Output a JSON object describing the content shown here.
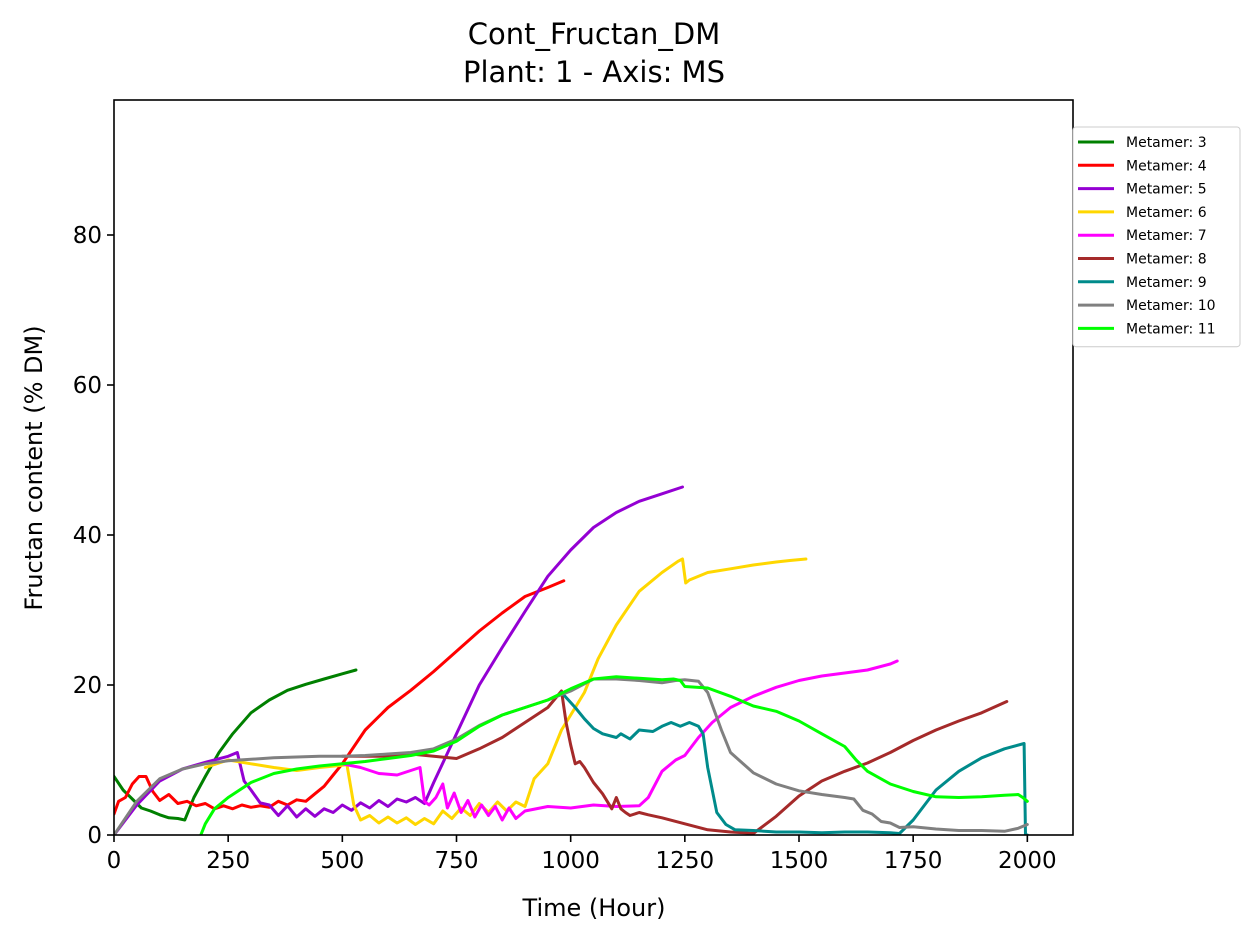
{
  "chart_data": {
    "type": "line",
    "title": "Cont_Fructan_DM",
    "subtitle": "Plant: 1 - Axis: MS",
    "xlabel": "Time (Hour)",
    "ylabel": "Fructan content (% DM)",
    "xlim": [
      0,
      2100
    ],
    "ylim": [
      0,
      98
    ],
    "xticks": [
      0,
      250,
      500,
      750,
      1000,
      1250,
      1500,
      1750,
      2000
    ],
    "yticks": [
      0,
      20,
      40,
      60,
      80
    ],
    "grid": false,
    "legend_position": "right-outside",
    "series": [
      {
        "name": "Metamer: 3",
        "color": "#008000",
        "x": [
          0,
          20,
          40,
          60,
          80,
          100,
          120,
          140,
          155,
          175,
          200,
          230,
          260,
          300,
          340,
          380,
          420,
          460,
          500,
          530
        ],
        "y": [
          7.8,
          6.0,
          4.8,
          3.6,
          3.2,
          2.7,
          2.3,
          2.2,
          2.0,
          5.0,
          7.8,
          11.0,
          13.5,
          16.3,
          18.0,
          19.3,
          20.1,
          20.8,
          21.5,
          22.0
        ]
      },
      {
        "name": "Metamer: 4",
        "color": "#ff0000",
        "x": [
          0,
          10,
          25,
          40,
          55,
          70,
          85,
          100,
          120,
          140,
          160,
          180,
          200,
          220,
          240,
          260,
          280,
          300,
          320,
          340,
          360,
          380,
          400,
          420,
          440,
          460,
          480,
          500,
          550,
          600,
          650,
          700,
          750,
          800,
          850,
          900,
          950,
          985
        ],
        "y": [
          2.8,
          4.5,
          5.0,
          6.8,
          7.8,
          7.8,
          5.8,
          4.6,
          5.4,
          4.2,
          4.5,
          3.9,
          4.2,
          3.5,
          3.9,
          3.5,
          4.0,
          3.7,
          3.9,
          3.7,
          4.5,
          4.0,
          4.7,
          4.5,
          5.5,
          6.5,
          8.0,
          9.5,
          14.0,
          17.0,
          19.3,
          21.8,
          24.5,
          27.2,
          29.6,
          31.8,
          33.0,
          33.9
        ]
      },
      {
        "name": "Metamer: 5",
        "color": "#9400d3",
        "x": [
          0,
          50,
          100,
          150,
          200,
          250,
          270,
          285,
          300,
          320,
          340,
          360,
          380,
          400,
          420,
          440,
          460,
          480,
          500,
          520,
          540,
          560,
          580,
          600,
          620,
          640,
          660,
          680,
          700,
          750,
          800,
          850,
          900,
          950,
          1000,
          1050,
          1100,
          1150,
          1200,
          1245
        ],
        "y": [
          0,
          4.0,
          7.2,
          8.8,
          9.7,
          10.5,
          11.0,
          7.2,
          6.0,
          4.3,
          4.0,
          2.6,
          3.9,
          2.4,
          3.5,
          2.5,
          3.5,
          3.0,
          4.0,
          3.3,
          4.3,
          3.6,
          4.6,
          3.8,
          4.8,
          4.4,
          5.0,
          4.2,
          7.0,
          13.5,
          20.0,
          25.0,
          29.8,
          34.5,
          38.0,
          41.0,
          43.0,
          44.5,
          45.5,
          46.4
        ]
      },
      {
        "name": "Metamer: 6",
        "color": "#ffd700",
        "x": [
          200,
          250,
          300,
          350,
          400,
          450,
          500,
          510,
          525,
          540,
          560,
          580,
          600,
          620,
          640,
          660,
          680,
          700,
          720,
          740,
          760,
          780,
          800,
          820,
          840,
          860,
          880,
          900,
          920,
          950,
          980,
          1000,
          1030,
          1060,
          1100,
          1150,
          1200,
          1235,
          1245,
          1252,
          1260,
          1300,
          1350,
          1400,
          1450,
          1480,
          1515
        ],
        "y": [
          9.0,
          10.0,
          9.5,
          9.0,
          8.6,
          9.0,
          9.3,
          9.4,
          4.0,
          2.0,
          2.6,
          1.6,
          2.4,
          1.6,
          2.3,
          1.4,
          2.2,
          1.5,
          3.2,
          2.2,
          3.6,
          2.6,
          4.2,
          3.0,
          4.4,
          3.2,
          4.4,
          3.8,
          7.5,
          9.5,
          14.0,
          16.0,
          19.0,
          23.5,
          28.0,
          32.5,
          35.0,
          36.5,
          36.8,
          33.6,
          34.0,
          35.0,
          35.5,
          36.0,
          36.4,
          36.6,
          36.8
        ]
      },
      {
        "name": "Metamer: 7",
        "color": "#ff00ff",
        "x": [
          500,
          540,
          580,
          620,
          650,
          670,
          680,
          690,
          705,
          720,
          730,
          745,
          760,
          775,
          790,
          805,
          820,
          835,
          850,
          865,
          880,
          900,
          950,
          1000,
          1050,
          1100,
          1150,
          1170,
          1200,
          1230,
          1250,
          1280,
          1310,
          1350,
          1400,
          1450,
          1500,
          1550,
          1600,
          1650,
          1700,
          1715
        ],
        "y": [
          9.5,
          9.0,
          8.2,
          8.0,
          8.6,
          9.0,
          4.5,
          4.0,
          5.0,
          6.8,
          3.6,
          5.6,
          3.0,
          4.6,
          2.4,
          4.0,
          2.6,
          3.8,
          2.0,
          3.6,
          2.2,
          3.2,
          3.8,
          3.6,
          4.0,
          3.8,
          3.9,
          5.0,
          8.5,
          10.0,
          10.6,
          13.0,
          15.0,
          17.0,
          18.5,
          19.7,
          20.6,
          21.2,
          21.6,
          22.0,
          22.8,
          23.2
        ]
      },
      {
        "name": "Metamer: 8",
        "color": "#a52a2a",
        "x": [
          500,
          600,
          650,
          700,
          750,
          800,
          850,
          900,
          950,
          980,
          990,
          1000,
          1010,
          1020,
          1030,
          1050,
          1070,
          1090,
          1100,
          1110,
          1120,
          1130,
          1150,
          1170,
          1200,
          1250,
          1300,
          1350,
          1380,
          1400,
          1450,
          1500,
          1550,
          1600,
          1650,
          1700,
          1750,
          1800,
          1850,
          1900,
          1955
        ],
        "y": [
          10.5,
          10.5,
          10.8,
          10.5,
          10.2,
          11.5,
          13.0,
          15.0,
          17.0,
          19.2,
          15.0,
          12.0,
          9.5,
          9.8,
          9.0,
          7.0,
          5.5,
          3.5,
          5.0,
          3.5,
          3.0,
          2.6,
          3.0,
          2.7,
          2.3,
          1.5,
          0.7,
          0.4,
          0.3,
          0.2,
          2.5,
          5.2,
          7.2,
          8.5,
          9.6,
          11.0,
          12.6,
          14.0,
          15.2,
          16.3,
          17.8
        ]
      },
      {
        "name": "Metamer: 9",
        "color": "#008b8b",
        "x": [
          980,
          995,
          1010,
          1030,
          1050,
          1070,
          1100,
          1110,
          1130,
          1150,
          1180,
          1200,
          1220,
          1240,
          1260,
          1280,
          1290,
          1300,
          1320,
          1340,
          1360,
          1400,
          1450,
          1500,
          1550,
          1600,
          1650,
          1700,
          1720,
          1750,
          1800,
          1850,
          1900,
          1950,
          1993,
          1996,
          2000
        ],
        "y": [
          19.0,
          18.0,
          17.0,
          15.5,
          14.2,
          13.5,
          13.0,
          13.5,
          12.8,
          14.0,
          13.8,
          14.5,
          15.0,
          14.5,
          15.0,
          14.5,
          13.5,
          9.0,
          3.0,
          1.4,
          0.7,
          0.6,
          0.4,
          0.4,
          0.3,
          0.4,
          0.4,
          0.3,
          0.2,
          2.0,
          6.0,
          8.5,
          10.3,
          11.5,
          12.2,
          0.0,
          0.0
        ]
      },
      {
        "name": "Metamer: 10",
        "color": "#808080",
        "x": [
          0,
          50,
          100,
          150,
          200,
          250,
          300,
          350,
          400,
          450,
          500,
          550,
          600,
          650,
          700,
          750,
          800,
          850,
          900,
          950,
          1000,
          1050,
          1100,
          1150,
          1200,
          1230,
          1250,
          1280,
          1300,
          1330,
          1350,
          1400,
          1450,
          1500,
          1550,
          1600,
          1620,
          1640,
          1660,
          1680,
          1700,
          1720,
          1750,
          1800,
          1850,
          1900,
          1950,
          1980,
          2000
        ],
        "y": [
          0,
          4.5,
          7.5,
          8.8,
          9.5,
          9.9,
          10.1,
          10.3,
          10.4,
          10.5,
          10.5,
          10.6,
          10.8,
          11.0,
          11.5,
          12.8,
          14.6,
          16.0,
          17.0,
          18.0,
          19.2,
          20.8,
          20.8,
          20.6,
          20.3,
          20.6,
          20.7,
          20.5,
          19.0,
          14.0,
          11.0,
          8.3,
          6.8,
          5.9,
          5.4,
          5.0,
          4.8,
          3.3,
          2.8,
          1.8,
          1.6,
          1.0,
          1.1,
          0.8,
          0.6,
          0.6,
          0.5,
          0.9,
          1.4
        ]
      },
      {
        "name": "Metamer: 11",
        "color": "#00ff00",
        "x": [
          190,
          200,
          220,
          250,
          300,
          350,
          400,
          450,
          500,
          550,
          600,
          650,
          700,
          750,
          800,
          850,
          900,
          950,
          1000,
          1050,
          1100,
          1150,
          1200,
          1225,
          1240,
          1250,
          1300,
          1350,
          1400,
          1450,
          1500,
          1550,
          1600,
          1625,
          1650,
          1700,
          1750,
          1800,
          1850,
          1900,
          1950,
          1980,
          1990,
          2000
        ],
        "y": [
          0,
          1.5,
          3.5,
          5.0,
          7.0,
          8.2,
          8.8,
          9.2,
          9.5,
          9.8,
          10.2,
          10.6,
          11.2,
          12.5,
          14.5,
          16.0,
          17.0,
          18.0,
          19.5,
          20.8,
          21.1,
          20.9,
          20.7,
          20.8,
          20.6,
          19.8,
          19.6,
          18.5,
          17.2,
          16.5,
          15.2,
          13.5,
          11.8,
          10.0,
          8.5,
          6.8,
          5.8,
          5.1,
          5.0,
          5.1,
          5.3,
          5.4,
          5.0,
          4.5
        ]
      }
    ]
  }
}
